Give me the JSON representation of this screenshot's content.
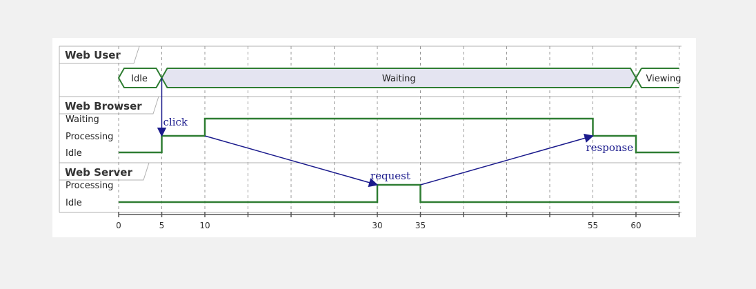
{
  "colors": {
    "signal": "#2e7d32",
    "concise_fill": "#e4e4f1",
    "message": "#1a1a8c",
    "grid": "#999999",
    "lane_border": "#b0b0b0"
  },
  "time": {
    "min": 0,
    "max": 65,
    "gridlines": [
      0,
      5,
      10,
      15,
      20,
      25,
      30,
      35,
      40,
      45,
      50,
      55,
      60,
      65
    ],
    "labels": [
      0,
      5,
      10,
      30,
      35,
      55,
      60
    ]
  },
  "lanes": {
    "user": {
      "title": "Web User",
      "type": "concise",
      "states": [
        {
          "label": "Idle",
          "start": 0,
          "end": 5
        },
        {
          "label": "Waiting",
          "start": 5,
          "end": 60
        },
        {
          "label": "Viewing",
          "start": 60,
          "end": 65
        }
      ]
    },
    "browser": {
      "title": "Web Browser",
      "type": "robust",
      "levels": [
        "Waiting",
        "Processing",
        "Idle"
      ],
      "signal": [
        {
          "t": 0,
          "level": "Idle"
        },
        {
          "t": 5,
          "level": "Processing"
        },
        {
          "t": 10,
          "level": "Waiting"
        },
        {
          "t": 55,
          "level": "Processing"
        },
        {
          "t": 60,
          "level": "Idle"
        }
      ]
    },
    "server": {
      "title": "Web Server",
      "type": "robust",
      "levels": [
        "Processing",
        "Idle"
      ],
      "signal": [
        {
          "t": 0,
          "level": "Idle"
        },
        {
          "t": 30,
          "level": "Processing"
        },
        {
          "t": 35,
          "level": "Idle"
        }
      ]
    }
  },
  "messages": [
    {
      "label": "click",
      "from": {
        "lane": "user",
        "t": 5
      },
      "to": {
        "lane": "browser",
        "t": 5,
        "level": "Processing"
      }
    },
    {
      "label": "request",
      "from": {
        "lane": "browser",
        "t": 10,
        "level": "Processing"
      },
      "to": {
        "lane": "server",
        "t": 30,
        "level": "Processing"
      }
    },
    {
      "label": "response",
      "from": {
        "lane": "server",
        "t": 35,
        "level": "Processing"
      },
      "to": {
        "lane": "browser",
        "t": 55,
        "level": "Processing"
      }
    }
  ]
}
